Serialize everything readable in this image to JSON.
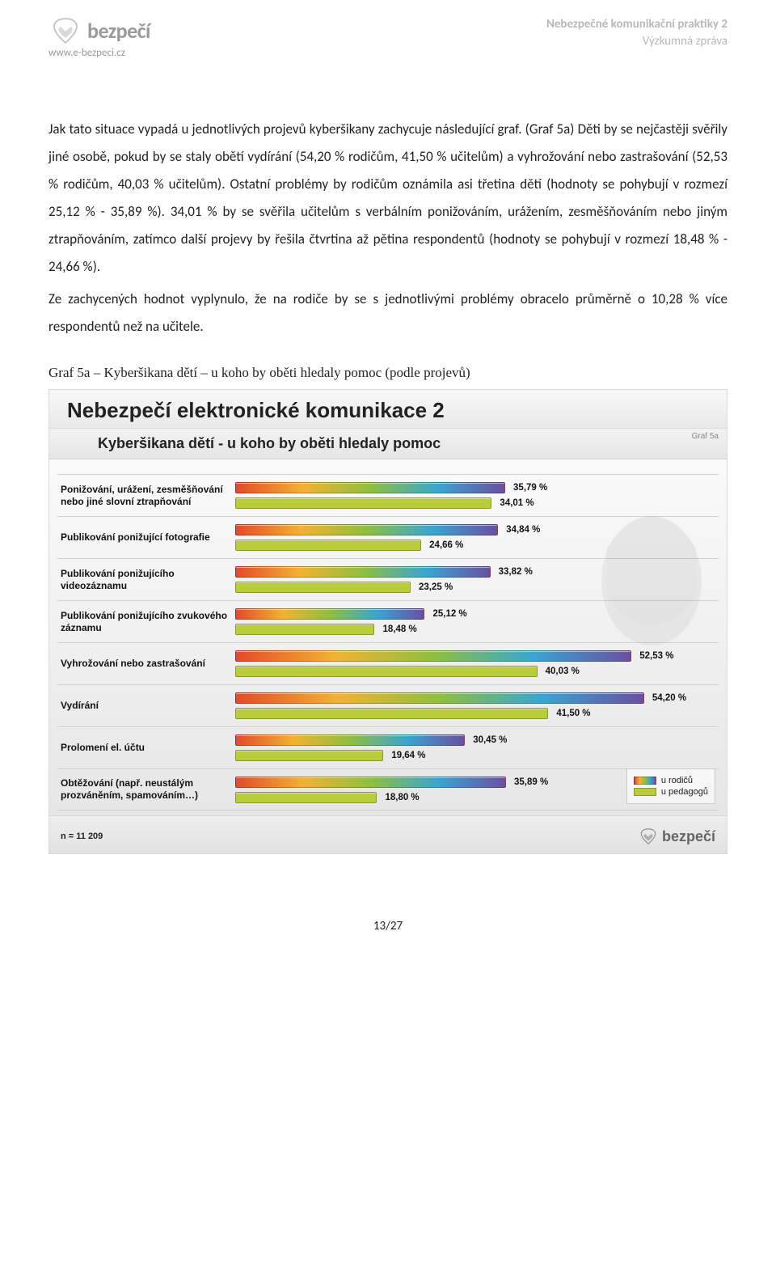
{
  "header": {
    "logo_text": "bezpečí",
    "url": "www.e-bezpeci.cz",
    "right_line1": "Nebezpečné komunikační praktiky 2",
    "right_line2": "Výzkumná zpráva"
  },
  "body": {
    "paragraph1": "Jak tato situace vypadá u jednotlivých projevů kyberšikany zachycuje následující graf. (Graf 5a) Děti by se nejčastěji svěřily jiné osobě, pokud by se staly obětí vydírání (54,20 % rodičům, 41,50 % učitelům) a vyhrožování nebo zastrašování (52,53 % rodičům, 40,03 % učitelům). Ostatní problémy by rodičům oznámila asi třetina dětí (hodnoty se pohybují v rozmezí 25,12 % - 35,89 %). 34,01 % by se svěřila učitelům s verbálním ponižováním, urážením, zesměšňováním nebo jiným ztrapňováním, zatímco další projevy by řešila čtvrtina až pětina respondentů (hodnoty se pohybují v rozmezí 18,48 % - 24,66 %).",
    "paragraph2": "Ze zachycených hodnot vyplynulo, že na rodiče by se s jednotlivými problémy obracelo průměrně o 10,28 % více respondentů než na učitele."
  },
  "caption": "Graf 5a – Kyberšikana dětí – u koho by oběti hledaly pomoc (podle projevů)",
  "chart": {
    "title": "Nebezpečí elektronické komunikace 2",
    "subtitle": "Kyberšikana dětí - u koho by oběti hledaly pomoc",
    "chart_id": "Graf 5a",
    "max_scale": 60,
    "series_colors": {
      "parents": "linear-gradient(90deg,#e34a2a 0%,#f2b233 25%,#8fbf3f 50%,#3aa6d0 75%,#6a4fa3 100%)",
      "teachers": "#b9cc3a"
    },
    "legend": {
      "parents": "u rodičů",
      "teachers": "u pedagogů"
    },
    "rows": [
      {
        "label": "Ponižování, urážení, zesměšňování nebo jiné slovní ztrapňování",
        "parents": 35.79,
        "teachers": 34.01,
        "parents_lbl": "35,79 %",
        "teachers_lbl": "34,01 %"
      },
      {
        "label": "Publikování ponižující fotografie",
        "parents": 34.84,
        "teachers": 24.66,
        "parents_lbl": "34,84 %",
        "teachers_lbl": "24,66 %"
      },
      {
        "label": "Publikování ponižujícího videozáznamu",
        "parents": 33.82,
        "teachers": 23.25,
        "parents_lbl": "33,82 %",
        "teachers_lbl": "23,25 %"
      },
      {
        "label": "Publikování ponižujícího zvukového záznamu",
        "parents": 25.12,
        "teachers": 18.48,
        "parents_lbl": "25,12 %",
        "teachers_lbl": "18,48 %"
      },
      {
        "label": "Vyhrožování nebo zastrašování",
        "parents": 52.53,
        "teachers": 40.03,
        "parents_lbl": "52,53 %",
        "teachers_lbl": "40,03 %"
      },
      {
        "label": "Vydírání",
        "parents": 54.2,
        "teachers": 41.5,
        "parents_lbl": "54,20 %",
        "teachers_lbl": "41,50 %"
      },
      {
        "label": "Prolomení el. účtu",
        "parents": 30.45,
        "teachers": 19.64,
        "parents_lbl": "30,45 %",
        "teachers_lbl": "19,64 %"
      },
      {
        "label": "Obtěžování (např. neustálým prozváněním, spamováním…)",
        "parents": 35.89,
        "teachers": 18.8,
        "parents_lbl": "35,89 %",
        "teachers_lbl": "18,80 %"
      }
    ],
    "n_label": "n = 11 209",
    "footer_logo_text": "bezpečí"
  },
  "page_number": "13/27"
}
